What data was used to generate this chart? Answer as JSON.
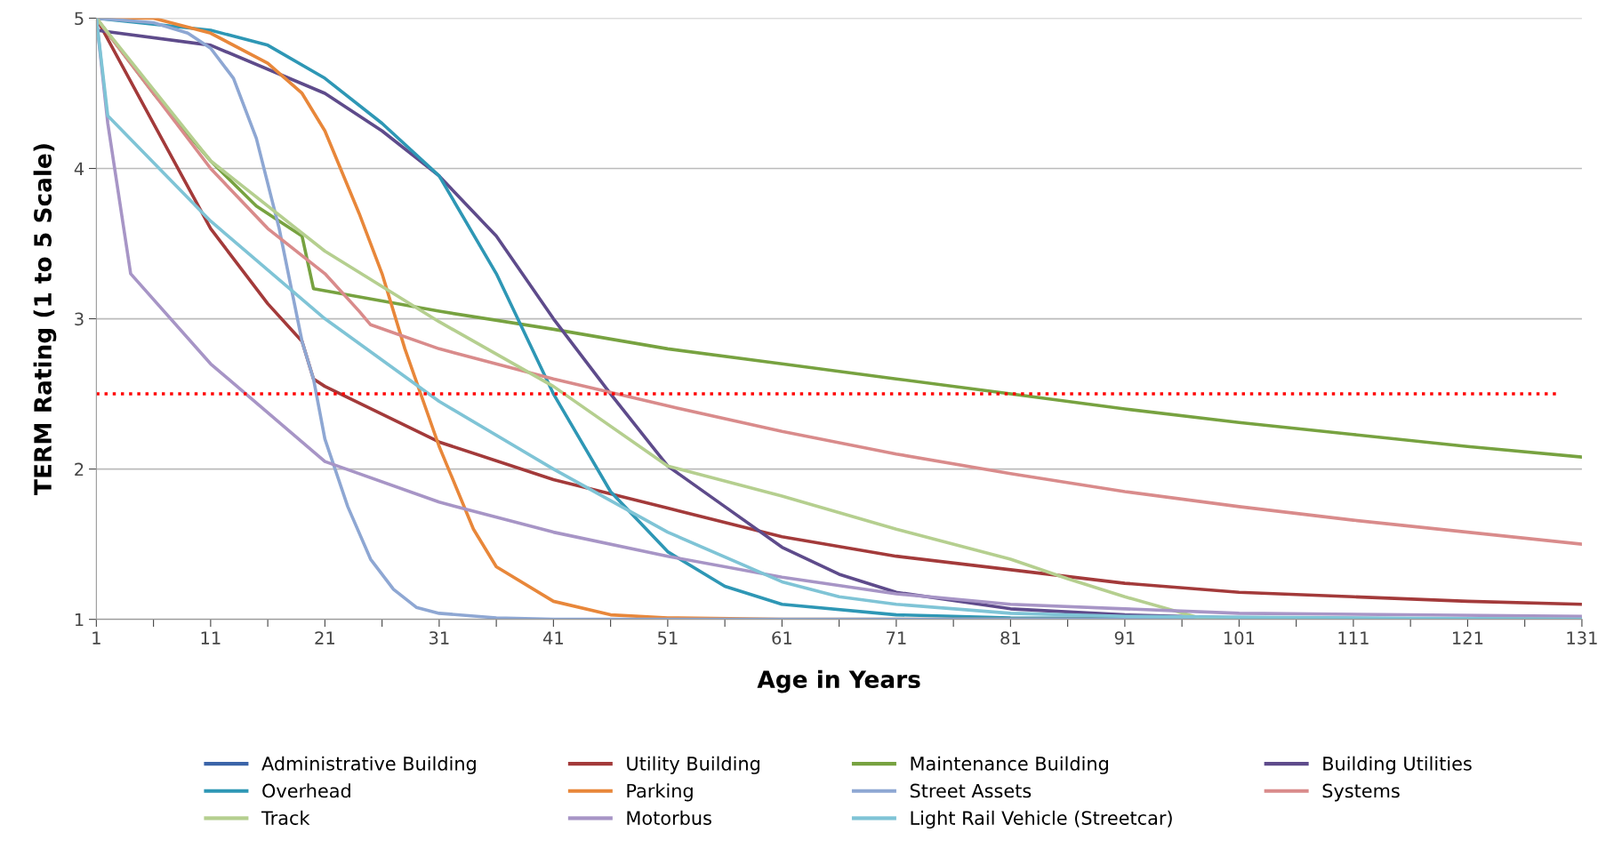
{
  "chart_data": {
    "type": "line",
    "xlabel": "Age in Years",
    "ylabel": "TERM Rating (1 to 5 Scale)",
    "xlim": [
      1,
      131
    ],
    "xticks": [
      1,
      {
        "value": 6,
        "label": null
      },
      11,
      {
        "value": 16,
        "label": null
      },
      21,
      {
        "value": 26,
        "label": null
      },
      31,
      {
        "value": 36,
        "label": null
      },
      41,
      {
        "value": 46,
        "label": null
      },
      51,
      {
        "value": 56,
        "label": null
      },
      61,
      {
        "value": 66,
        "label": null
      },
      71,
      {
        "value": 76,
        "label": null
      },
      81,
      {
        "value": 86,
        "label": null
      },
      91,
      {
        "value": 96,
        "label": null
      },
      101,
      {
        "value": 106,
        "label": null
      },
      111,
      {
        "value": 116,
        "label": null
      },
      121,
      {
        "value": 126,
        "label": null
      },
      131
    ],
    "ylim": [
      1,
      5
    ],
    "yticks": [
      1,
      2,
      3,
      4,
      5
    ],
    "grid": "y",
    "legend": "bottom",
    "marker": "none",
    "line_style": "solid",
    "ref_lines": [
      {
        "axis": "y",
        "value": 2.5,
        "color": "#ff0000",
        "line_style": "dotted"
      }
    ],
    "series": [
      {
        "name": "Administrative Building",
        "color": "#3b64a8"
      },
      {
        "name": "Utility Building",
        "color": "#a33a3a",
        "x": [
          1,
          6,
          11,
          16,
          19,
          20,
          21,
          31,
          41,
          51,
          61,
          71,
          81,
          91,
          101,
          111,
          121,
          131
        ],
        "values": [
          5,
          4.3,
          3.6,
          3.1,
          2.85,
          2.6,
          2.55,
          2.18,
          1.93,
          1.74,
          1.55,
          1.42,
          1.33,
          1.24,
          1.18,
          1.15,
          1.12,
          1.1
        ]
      },
      {
        "name": "Maintenance Building",
        "color": "#77a240",
        "x": [
          1,
          6,
          11,
          15,
          19,
          20,
          31,
          41,
          51,
          61,
          71,
          81,
          91,
          101,
          111,
          121,
          131
        ],
        "values": [
          5,
          4.5,
          4.05,
          3.75,
          3.55,
          3.2,
          3.05,
          2.93,
          2.8,
          2.7,
          2.6,
          2.5,
          2.4,
          2.31,
          2.23,
          2.15,
          2.08
        ]
      },
      {
        "name": "Building Utilities",
        "color": "#5e4b8b",
        "x": [
          1,
          11,
          21,
          26,
          31,
          36,
          41,
          46,
          51,
          56,
          61,
          66,
          71,
          81,
          91,
          101,
          131
        ],
        "values": [
          4.92,
          4.82,
          4.5,
          4.25,
          3.95,
          3.55,
          3.0,
          2.5,
          2.02,
          1.75,
          1.48,
          1.3,
          1.18,
          1.07,
          1.03,
          1.01,
          1.0
        ]
      },
      {
        "name": "Overhead",
        "color": "#2e97b5",
        "x": [
          1,
          11,
          16,
          21,
          26,
          31,
          36,
          41,
          46,
          51,
          56,
          61,
          71,
          81,
          131
        ],
        "values": [
          5,
          4.92,
          4.82,
          4.6,
          4.3,
          3.95,
          3.3,
          2.5,
          1.85,
          1.45,
          1.22,
          1.1,
          1.03,
          1.01,
          1.0
        ]
      },
      {
        "name": "Parking",
        "color": "#e8873a",
        "x": [
          1,
          6,
          11,
          16,
          19,
          21,
          24,
          26,
          28,
          31,
          34,
          36,
          41,
          46,
          51,
          61,
          131
        ],
        "values": [
          5,
          5,
          4.9,
          4.7,
          4.5,
          4.25,
          3.7,
          3.3,
          2.8,
          2.15,
          1.6,
          1.35,
          1.12,
          1.03,
          1.01,
          1.0,
          1.0
        ]
      },
      {
        "name": "Street Assets",
        "color": "#8ea7d3",
        "x": [
          1,
          6,
          9,
          11,
          13,
          15,
          17,
          19,
          20,
          21,
          23,
          25,
          27,
          29,
          31,
          36,
          41,
          131
        ],
        "values": [
          5,
          4.97,
          4.9,
          4.8,
          4.6,
          4.2,
          3.6,
          2.85,
          2.6,
          2.2,
          1.75,
          1.4,
          1.2,
          1.08,
          1.04,
          1.01,
          1.0,
          1.0
        ]
      },
      {
        "name": "Systems",
        "color": "#d98b8b",
        "x": [
          1,
          6,
          11,
          16,
          21,
          24,
          25,
          31,
          41,
          51,
          61,
          71,
          81,
          91,
          101,
          111,
          121,
          131
        ],
        "values": [
          5,
          4.5,
          4.0,
          3.6,
          3.3,
          3.05,
          2.96,
          2.8,
          2.6,
          2.42,
          2.25,
          2.1,
          1.97,
          1.85,
          1.75,
          1.66,
          1.58,
          1.5
        ]
      },
      {
        "name": "Track",
        "color": "#b5cf8f",
        "x": [
          1,
          11,
          21,
          31,
          41,
          51,
          61,
          71,
          81,
          86,
          91,
          98,
          131
        ],
        "values": [
          5,
          4.05,
          3.45,
          2.98,
          2.55,
          2.02,
          1.82,
          1.6,
          1.4,
          1.27,
          1.15,
          1.0,
          1.0
        ]
      },
      {
        "name": "Motorbus",
        "color": "#a795c6",
        "x": [
          1,
          2,
          4,
          11,
          21,
          31,
          41,
          51,
          61,
          71,
          81,
          91,
          101,
          131
        ],
        "values": [
          5,
          4.3,
          3.3,
          2.7,
          2.05,
          1.78,
          1.58,
          1.42,
          1.28,
          1.17,
          1.1,
          1.07,
          1.04,
          1.02
        ]
      },
      {
        "name": "Light Rail Vehicle (Streetcar)",
        "color": "#7fc4d6",
        "x": [
          1,
          2,
          11,
          21,
          31,
          41,
          51,
          61,
          66,
          71,
          81,
          91,
          131
        ],
        "values": [
          5,
          4.35,
          3.65,
          3.0,
          2.45,
          2.0,
          1.58,
          1.25,
          1.15,
          1.1,
          1.04,
          1.02,
          1.0
        ]
      }
    ]
  }
}
